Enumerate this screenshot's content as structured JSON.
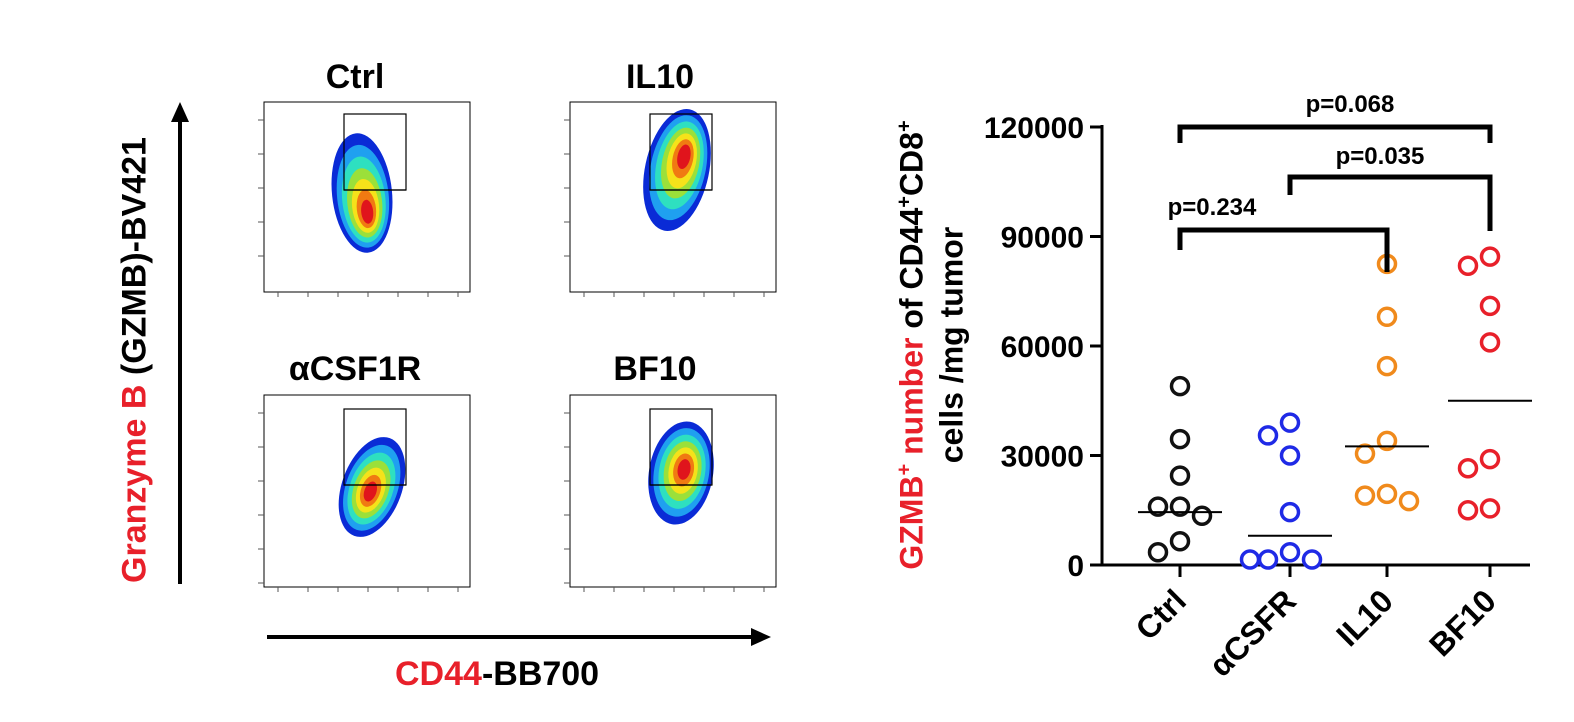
{
  "colors": {
    "red": "#e8202a",
    "black": "#000000",
    "ctrl": "#111111",
    "acsfr": "#1f2ae6",
    "il10": "#f08a1c",
    "bf10": "#e8202a",
    "density": [
      "#0a2bd6",
      "#1fa0f0",
      "#2ee0c0",
      "#9be03a",
      "#f5e21a",
      "#f07a12",
      "#e0141c"
    ]
  },
  "flow_panel": {
    "y_axis": {
      "red_part": "Granzyme B",
      "black_part": " (GZMB)-BV421"
    },
    "x_axis": {
      "red_part": "CD44",
      "black_part": "-BB700"
    },
    "plots": [
      {
        "title": "Ctrl"
      },
      {
        "title": "IL10"
      },
      {
        "title": "αCSF1R"
      },
      {
        "title": "BF10"
      }
    ]
  },
  "chart_data": {
    "type": "scatter",
    "ylabel_line1_red": "GZMB",
    "ylabel_line1_sup": "+",
    "ylabel_line1_red2": " number",
    "ylabel_line1_black": " of CD44",
    "ylabel_line1_sup2": "+",
    "ylabel_line1_black2": "CD8",
    "ylabel_line1_sup3": "+",
    "ylabel_line2": "cells /mg tumor",
    "ylim": [
      0,
      120000
    ],
    "yticks": [
      "0",
      "30000",
      "60000",
      "90000",
      "120000"
    ],
    "categories": [
      "Ctrl",
      "αCSFR",
      "IL10",
      "BF10"
    ],
    "series": [
      {
        "name": "Ctrl",
        "values": [
          49000,
          34500,
          24500,
          16000,
          16000,
          13500,
          6500,
          3500
        ],
        "mean": 14500
      },
      {
        "name": "αCSFR",
        "values": [
          39000,
          35500,
          30000,
          14500,
          3500,
          1500,
          1500,
          1500
        ],
        "mean": 8000
      },
      {
        "name": "IL10",
        "values": [
          82500,
          68000,
          54500,
          34000,
          30500,
          19500,
          19000,
          17500
        ],
        "mean": 32500
      },
      {
        "name": "BF10",
        "values": [
          84500,
          82000,
          71000,
          61000,
          29000,
          26500,
          15500,
          15000
        ],
        "mean": 45000
      }
    ],
    "comparisons": [
      {
        "label": "p=0.068",
        "from": "Ctrl",
        "to": "BF10"
      },
      {
        "label": "p=0.035",
        "from": "αCSFR",
        "to": "BF10"
      },
      {
        "label": "p=0.234",
        "from": "Ctrl",
        "to": "IL10"
      }
    ]
  }
}
